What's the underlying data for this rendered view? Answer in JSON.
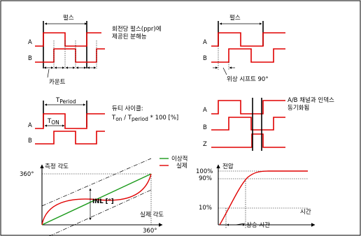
{
  "panel1": {
    "pulse": "펄스",
    "label_a": "A",
    "label_b": "B",
    "count": "카운트",
    "note_line1": "회전당 펄스(ppr)에",
    "note_line2": "제공된 분해능"
  },
  "panel2": {
    "pulse": "펄스",
    "label_a": "A",
    "label_b": "B",
    "phase": "위상 시프트 90°"
  },
  "panel3": {
    "t_period": "T",
    "t_period_sub": "Period",
    "t_on": "T",
    "t_on_sub": "ON",
    "label_a": "A",
    "label_b": "B",
    "duty_title": "듀티 사이클:",
    "duty_t1": "T",
    "duty_t1_sub": "on",
    "duty_sep": " / T",
    "duty_t2_sub": "period",
    "duty_tail": " * 100 [%]"
  },
  "panel4": {
    "label_a": "A",
    "label_b": "B",
    "label_z": "Z",
    "note_line1": "A/B 채널과 인덱스",
    "note_line2": "동기화됨"
  },
  "panel5": {
    "legend_ideal": "이상적",
    "legend_real": "실제",
    "y_label": "측정 각도",
    "x_label": "실제 각도",
    "y_tick": "360°",
    "x_tick": "360°",
    "inl": "INL [°]",
    "colors": {
      "ideal": "#1a9a1a",
      "real": "#e00000"
    }
  },
  "panel6": {
    "y_label": "전압",
    "x_label": "시간",
    "tick_100": "100%",
    "tick_90": "90%",
    "tick_10": "10%",
    "rise": "상승 시간"
  }
}
